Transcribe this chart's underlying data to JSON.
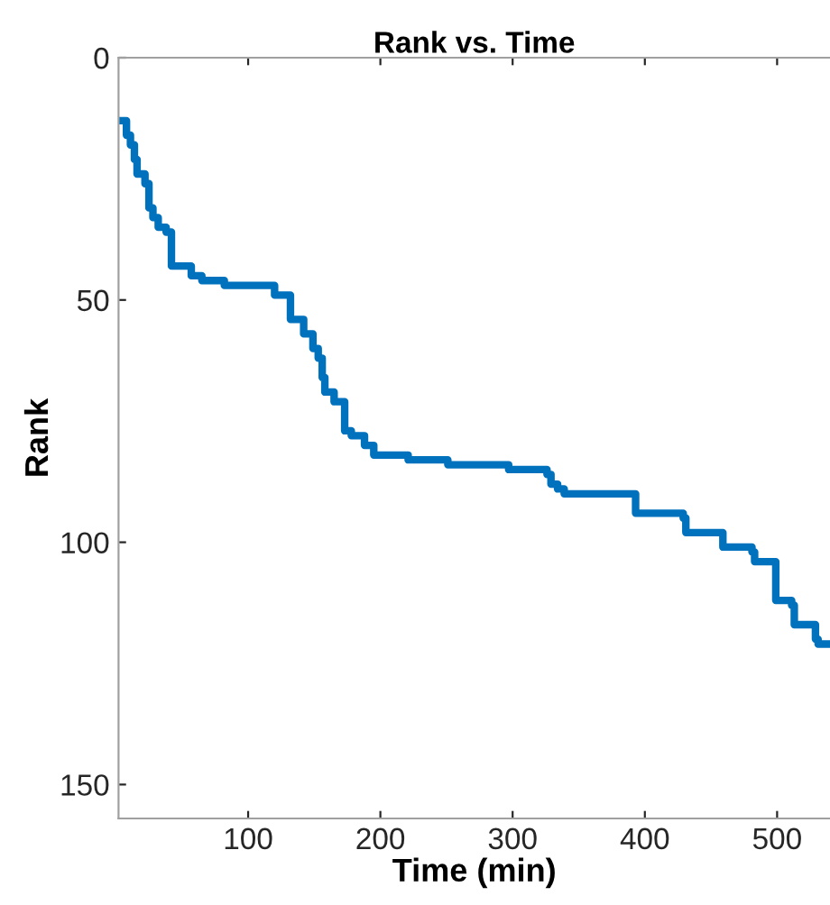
{
  "chart_data": {
    "type": "step",
    "title": "Rank vs. Time",
    "xlabel": "Time (min)",
    "ylabel": "Rank",
    "x": [
      3,
      8,
      11,
      14,
      16,
      22,
      25,
      28,
      32,
      38,
      42,
      57,
      65,
      82,
      120,
      132,
      142,
      149,
      153,
      156,
      158,
      165,
      173,
      178,
      188,
      195,
      221,
      251,
      297,
      326,
      329,
      334,
      339,
      385,
      393,
      429,
      431,
      459,
      481,
      483,
      499,
      511,
      513,
      527,
      529,
      531,
      540
    ],
    "series": [
      {
        "color": "#0072bd",
        "values": [
          13,
          16,
          18,
          21,
          24,
          26,
          31,
          33,
          35,
          36,
          43,
          45,
          46,
          47,
          49,
          54,
          57,
          60,
          62,
          66,
          69,
          71,
          77,
          78,
          80,
          82,
          83,
          84,
          85,
          86,
          88,
          89,
          90,
          90,
          94,
          95,
          98,
          101,
          102,
          104,
          112,
          113,
          117,
          117,
          120,
          121,
          121
        ]
      }
    ],
    "xlim": [
      2,
      540
    ],
    "ylim": [
      157,
      0
    ],
    "xticks": [
      100,
      200,
      300,
      400,
      500
    ],
    "yticks": [
      0,
      50,
      100,
      150
    ],
    "grid": false,
    "legend": false,
    "marker": "none",
    "line_style": "solid"
  }
}
